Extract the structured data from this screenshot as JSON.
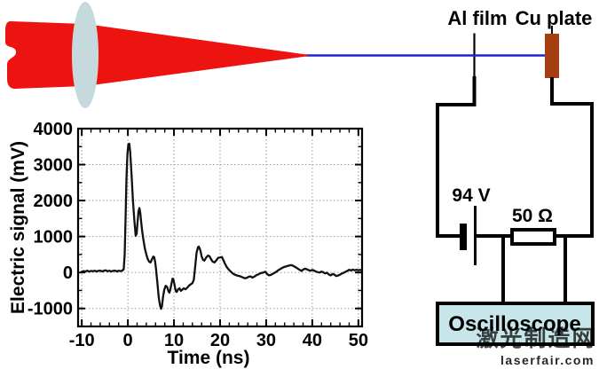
{
  "diagram": {
    "labels": {
      "al_film": "Al film",
      "cu_plate": "Cu plate",
      "voltage": "94 V",
      "resistance": "50 Ω",
      "oscilloscope": "Oscilloscope"
    },
    "colors": {
      "laser_red": "#ed1310",
      "lens_blue": "#c6dadd",
      "beam_blue": "#2222cf",
      "cu_plate_brown": "#a53e11",
      "oscilloscope_fill": "#c7e6ea",
      "wire_black": "#000000"
    }
  },
  "watermark": {
    "cn": "激光制造网",
    "site": "laserfair.com",
    "color": "#a5a5a5"
  },
  "chart_data": {
    "type": "line",
    "title": "",
    "xlabel": "Time (ns)",
    "ylabel": "Electric signal (mV)",
    "xlim": [
      -10.8,
      50.8
    ],
    "ylim": [
      -1500,
      4000
    ],
    "x_ticks": [
      -10,
      0,
      10,
      20,
      30,
      40,
      50
    ],
    "y_ticks": [
      -1000,
      0,
      1000,
      2000,
      3000,
      4000
    ],
    "x_minor_step": 2,
    "y_minor_step": 500,
    "grid": true,
    "grid_color": "#9a9a9a",
    "line_color": "#111111",
    "series": [
      {
        "name": "electric signal",
        "x": [
          -10,
          -9.6,
          -9.2,
          -8.8,
          -8.4,
          -8,
          -7.6,
          -7.2,
          -6.8,
          -6.4,
          -6,
          -5.6,
          -5.2,
          -4.8,
          -4.4,
          -4,
          -3.6,
          -3.2,
          -2.8,
          -2.4,
          -2,
          -1.6,
          -1.2,
          -0.9,
          -0.7,
          -0.5,
          -0.3,
          -0.1,
          0.1,
          0.3,
          0.5,
          0.8,
          1.1,
          1.4,
          1.7,
          1.9,
          2.1,
          2.3,
          2.5,
          2.7,
          2.9,
          3.1,
          3.4,
          3.7,
          4,
          4.3,
          4.6,
          4.9,
          5.2,
          5.5,
          5.7,
          5.9,
          6.1,
          6.4,
          6.7,
          7,
          7.2,
          7.4,
          7.6,
          7.9,
          8.2,
          8.5,
          8.8,
          9,
          9.2,
          9.5,
          9.7,
          9.9,
          10.2,
          10.4,
          10.6,
          10.9,
          11.2,
          11.5,
          11.8,
          12.1,
          12.5,
          12.9,
          13.3,
          13.7,
          14,
          14.3,
          14.6,
          14.9,
          15.2,
          15.4,
          15.7,
          16,
          16.3,
          16.6,
          17,
          17.4,
          17.7,
          18,
          18.4,
          18.8,
          19.2,
          19.6,
          20,
          20.4,
          20.7,
          21,
          21.4,
          21.8,
          22.2,
          22.6,
          23,
          23.4,
          23.8,
          24.2,
          24.6,
          25,
          25.4,
          25.8,
          26.2,
          26.6,
          27,
          27.4,
          27.8,
          28.2,
          28.6,
          29,
          29.4,
          29.8,
          30.2,
          30.6,
          31,
          31.4,
          31.8,
          32.2,
          32.6,
          33,
          33.4,
          33.8,
          34.2,
          34.6,
          35,
          35.4,
          35.8,
          36.2,
          36.6,
          37,
          37.4,
          37.7,
          38,
          38.4,
          38.8,
          39.2,
          39.6,
          40,
          40.4,
          40.8,
          41.2,
          41.6,
          42,
          42.4,
          42.8,
          43.2,
          43.6,
          44,
          44.4,
          44.8,
          45.2,
          45.6,
          46,
          46.4,
          46.8,
          47.2,
          47.6,
          48,
          48.4,
          48.8,
          49.2,
          49.6,
          50,
          50.4,
          50.8
        ],
        "y": [
          25,
          40,
          30,
          50,
          25,
          45,
          35,
          50,
          30,
          45,
          55,
          30,
          50,
          60,
          35,
          50,
          30,
          45,
          55,
          30,
          50,
          40,
          55,
          90,
          500,
          1500,
          2600,
          3300,
          3560,
          3580,
          3350,
          2700,
          2000,
          1450,
          1020,
          1080,
          1400,
          1700,
          1790,
          1650,
          1380,
          1150,
          880,
          660,
          500,
          380,
          300,
          280,
          360,
          440,
          430,
          300,
          100,
          -300,
          -700,
          -930,
          -1010,
          -940,
          -700,
          -480,
          -370,
          -400,
          -520,
          -560,
          -480,
          -280,
          -170,
          -200,
          -400,
          -520,
          -540,
          -470,
          -440,
          -510,
          -480,
          -440,
          -470,
          -420,
          -360,
          -320,
          -300,
          -200,
          150,
          550,
          700,
          720,
          620,
          450,
          350,
          330,
          420,
          470,
          450,
          380,
          300,
          280,
          340,
          410,
          420,
          430,
          350,
          260,
          160,
          90,
          40,
          -10,
          -50,
          -70,
          -90,
          -100,
          -120,
          -140,
          -160,
          -150,
          -120,
          -110,
          -140,
          -120,
          -80,
          -60,
          -30,
          -10,
          0,
          20,
          -40,
          -80,
          -70,
          -40,
          -10,
          20,
          60,
          90,
          120,
          150,
          165,
          180,
          195,
          205,
          190,
          160,
          130,
          95,
          60,
          45,
          80,
          105,
          90,
          65,
          50,
          70,
          55,
          25,
          10,
          0,
          25,
          5,
          -25,
          -5,
          -55,
          -80,
          -40,
          -60,
          -100,
          -85,
          -60,
          -30,
          -10,
          20,
          45,
          75,
          55,
          80,
          60,
          75,
          60,
          70,
          55
        ]
      }
    ]
  }
}
